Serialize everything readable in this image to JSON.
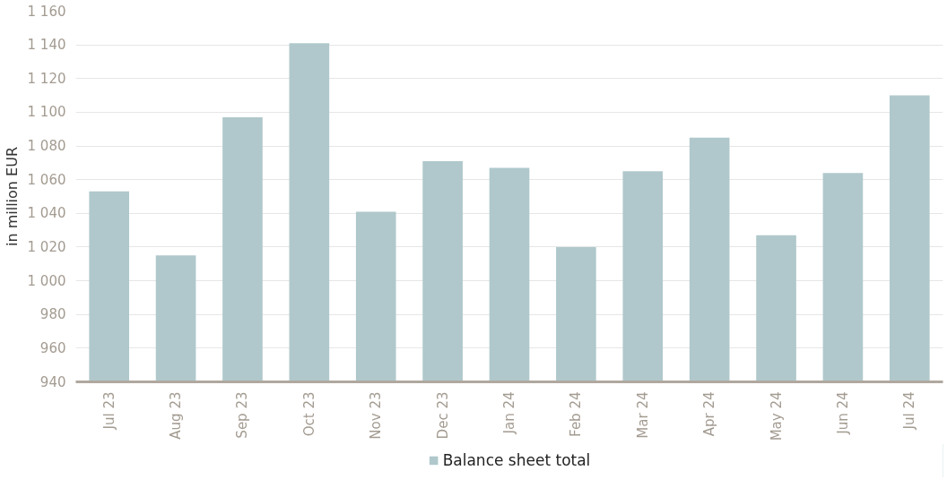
{
  "chart_data": {
    "type": "bar",
    "ylabel": "in million EUR",
    "categories": [
      "Jul 23",
      "Aug 23",
      "Sep 23",
      "Oct 23",
      "Nov 23",
      "Dec 23",
      "Jan 24",
      "Feb 24",
      "Mar 24",
      "Apr 24",
      "May 24",
      "Jun 24",
      "Jul 24"
    ],
    "series": [
      {
        "name": "Balance sheet total",
        "color": "#b0c8cb",
        "values": [
          1053,
          1015,
          1097,
          1141,
          1041,
          1071,
          1067,
          1020,
          1065,
          1085,
          1027,
          1064,
          1110
        ]
      }
    ],
    "ylim": [
      940,
      1160
    ],
    "yticks": [
      {
        "value": 940,
        "label": "940"
      },
      {
        "value": 960,
        "label": "960"
      },
      {
        "value": 980,
        "label": "980"
      },
      {
        "value": 1000,
        "label": "1 000"
      },
      {
        "value": 1020,
        "label": "1 020"
      },
      {
        "value": 1040,
        "label": "1 040"
      },
      {
        "value": 1060,
        "label": "1 060"
      },
      {
        "value": 1080,
        "label": "1 080"
      },
      {
        "value": 1100,
        "label": "1 100"
      },
      {
        "value": 1120,
        "label": "1 120"
      },
      {
        "value": 1140,
        "label": "1 140"
      },
      {
        "value": 1160,
        "label": "1 160"
      }
    ],
    "grid": "y",
    "legend": "bottom"
  }
}
